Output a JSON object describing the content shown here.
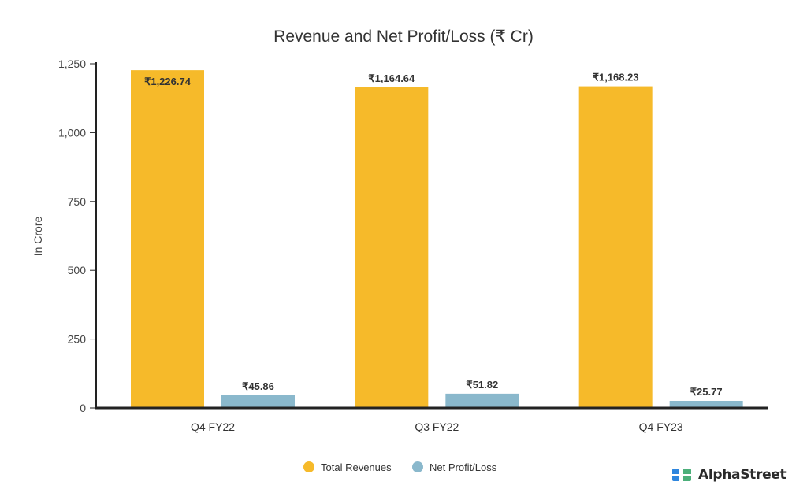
{
  "chart_data": {
    "type": "bar",
    "title": "Revenue and Net Profit/Loss (₹ Cr)",
    "xlabel": "",
    "ylabel": "In Crore",
    "ylim": [
      0,
      1250
    ],
    "yticks": [
      0,
      250,
      500,
      750,
      1000,
      1250
    ],
    "ytick_labels": [
      "0",
      "250",
      "500",
      "750",
      "1,000",
      "1,250"
    ],
    "categories": [
      "Q4 FY22",
      "Q3 FY22",
      "Q4 FY23"
    ],
    "series": [
      {
        "name": "Total Revenues",
        "color": "#F6BA2A",
        "values": [
          1226.74,
          1164.64,
          1168.23
        ],
        "labels": [
          "₹1,226.74",
          "₹1,164.64",
          "₹1,168.23"
        ]
      },
      {
        "name": "Net Profit/Loss",
        "color": "#8AB8CC",
        "values": [
          45.86,
          51.82,
          25.77
        ],
        "labels": [
          "₹45.86",
          "₹51.82",
          "₹25.77"
        ]
      }
    ],
    "grid": false,
    "legend": "bottom-center"
  },
  "brand": {
    "name": "AlphaStreet"
  }
}
